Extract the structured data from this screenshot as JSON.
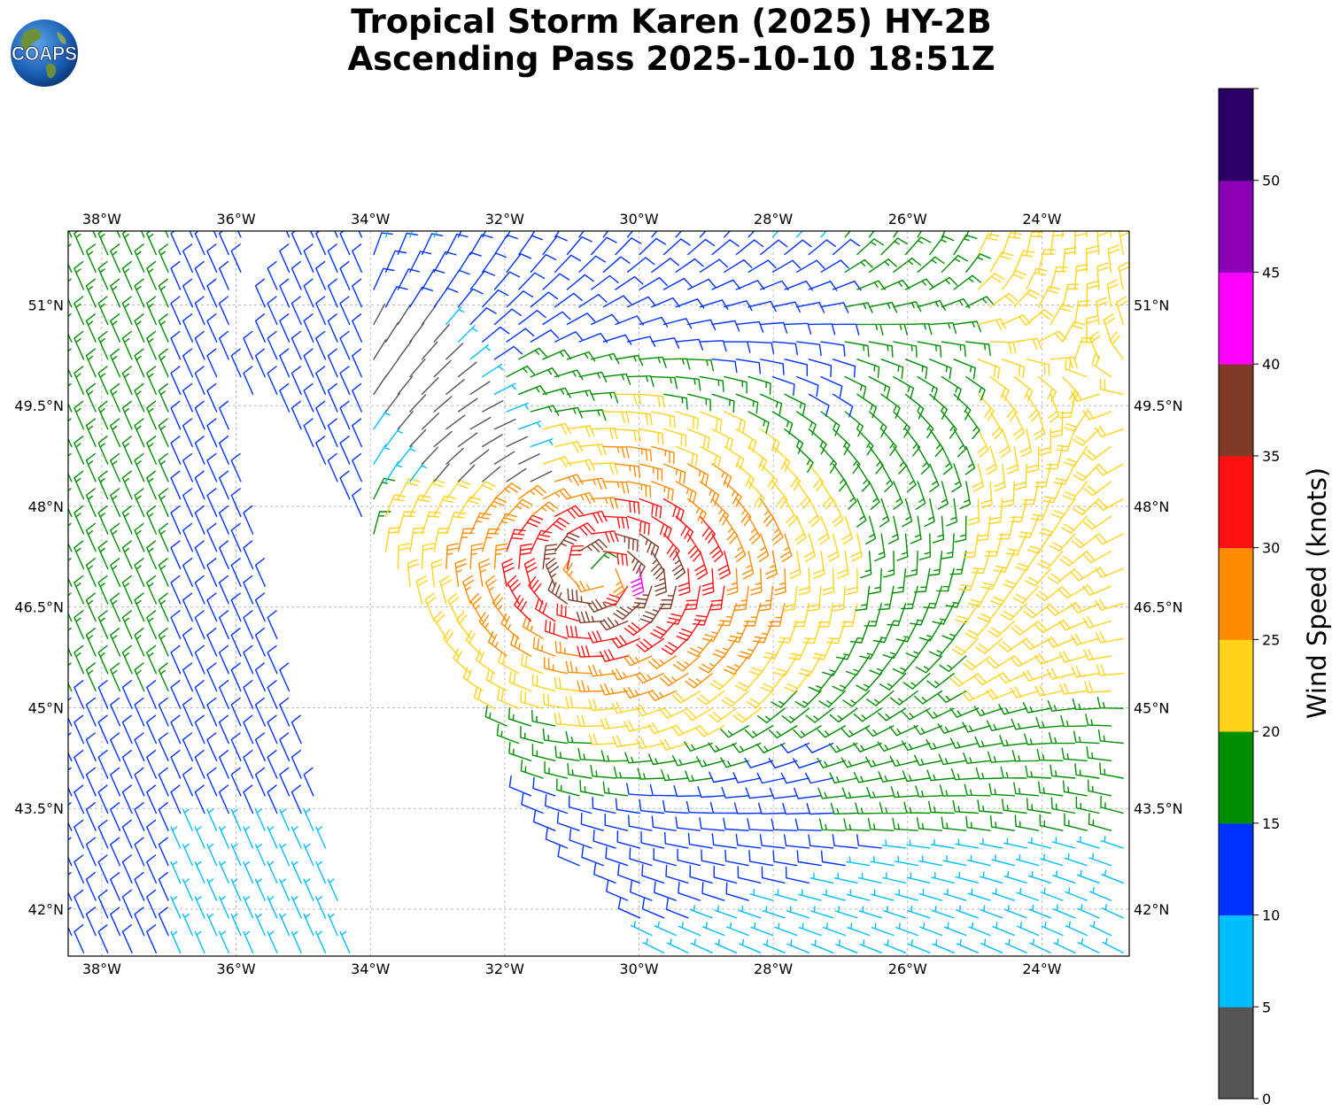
{
  "header": {
    "logo_text": "COAPS",
    "title_line1": "Tropical Storm Karen (2025) HY-2B",
    "title_line2": "Ascending Pass 2025-10-10 18:51Z"
  },
  "map": {
    "lon_range": [
      -38.5,
      -22.7
    ],
    "lat_range": [
      41.3,
      52.1
    ],
    "lon_ticks": [
      "38°W",
      "36°W",
      "34°W",
      "32°W",
      "30°W",
      "28°W",
      "26°W",
      "24°W"
    ],
    "lat_ticks": [
      "42°N",
      "43.5°N",
      "45°N",
      "46.5°N",
      "48°N",
      "49.5°N",
      "51°N"
    ],
    "gridlines": true,
    "storm_center": {
      "lon": -30.6,
      "lat": 47.0
    },
    "swaths": [
      {
        "name": "western swath",
        "west_edge": [
          [
            -38.5,
            52.1
          ],
          [
            -38.5,
            41.3
          ]
        ],
        "east_edge": [
          [
            -35.8,
            52.1
          ],
          [
            -36.2,
            49.6
          ],
          [
            -34.2,
            41.3
          ]
        ]
      },
      {
        "name": "eastern swath",
        "west_edge": [
          [
            -35.2,
            52.1
          ],
          [
            -36.0,
            50.0
          ],
          [
            -33.0,
            46.0
          ],
          [
            -31.2,
            43.0
          ],
          [
            -29.8,
            41.3
          ]
        ],
        "east_edge": [
          [
            -22.7,
            52.1
          ],
          [
            -22.7,
            41.3
          ]
        ]
      }
    ],
    "calm_region_lons": [
      -34.3,
      -33.8,
      -33.5,
      -33.0,
      -32.8,
      -32.5,
      -32.6,
      -32.3,
      -32.9,
      -34.1,
      -34.0
    ],
    "calm_region_lats": [
      50.2,
      50.0,
      49.7,
      49.6,
      49.1,
      48.9,
      48.6,
      48.5,
      49.3,
      49.5,
      49.9
    ]
  },
  "colorbar": {
    "label": "Wind Speed (knots)",
    "range": [
      0,
      55
    ],
    "tick_values": [
      0,
      5,
      10,
      15,
      20,
      25,
      30,
      35,
      40,
      45,
      50
    ],
    "tick_labels": [
      "0",
      "5",
      "10",
      "15",
      "20",
      "25",
      "30",
      "35",
      "40",
      "45",
      "50"
    ],
    "bins": [
      {
        "from": 0,
        "to": 5,
        "color": "#555555"
      },
      {
        "from": 5,
        "to": 10,
        "color": "#00bfff"
      },
      {
        "from": 10,
        "to": 15,
        "color": "#0033ff"
      },
      {
        "from": 15,
        "to": 20,
        "color": "#008f00"
      },
      {
        "from": 20,
        "to": 25,
        "color": "#ffd31a"
      },
      {
        "from": 25,
        "to": 30,
        "color": "#ff8c00"
      },
      {
        "from": 30,
        "to": 35,
        "color": "#ff1010"
      },
      {
        "from": 35,
        "to": 40,
        "color": "#7f3b25"
      },
      {
        "from": 40,
        "to": 45,
        "color": "#ff00ff"
      },
      {
        "from": 45,
        "to": 50,
        "color": "#8b00b7"
      },
      {
        "from": 50,
        "to": 55,
        "color": "#2b0064"
      }
    ]
  }
}
